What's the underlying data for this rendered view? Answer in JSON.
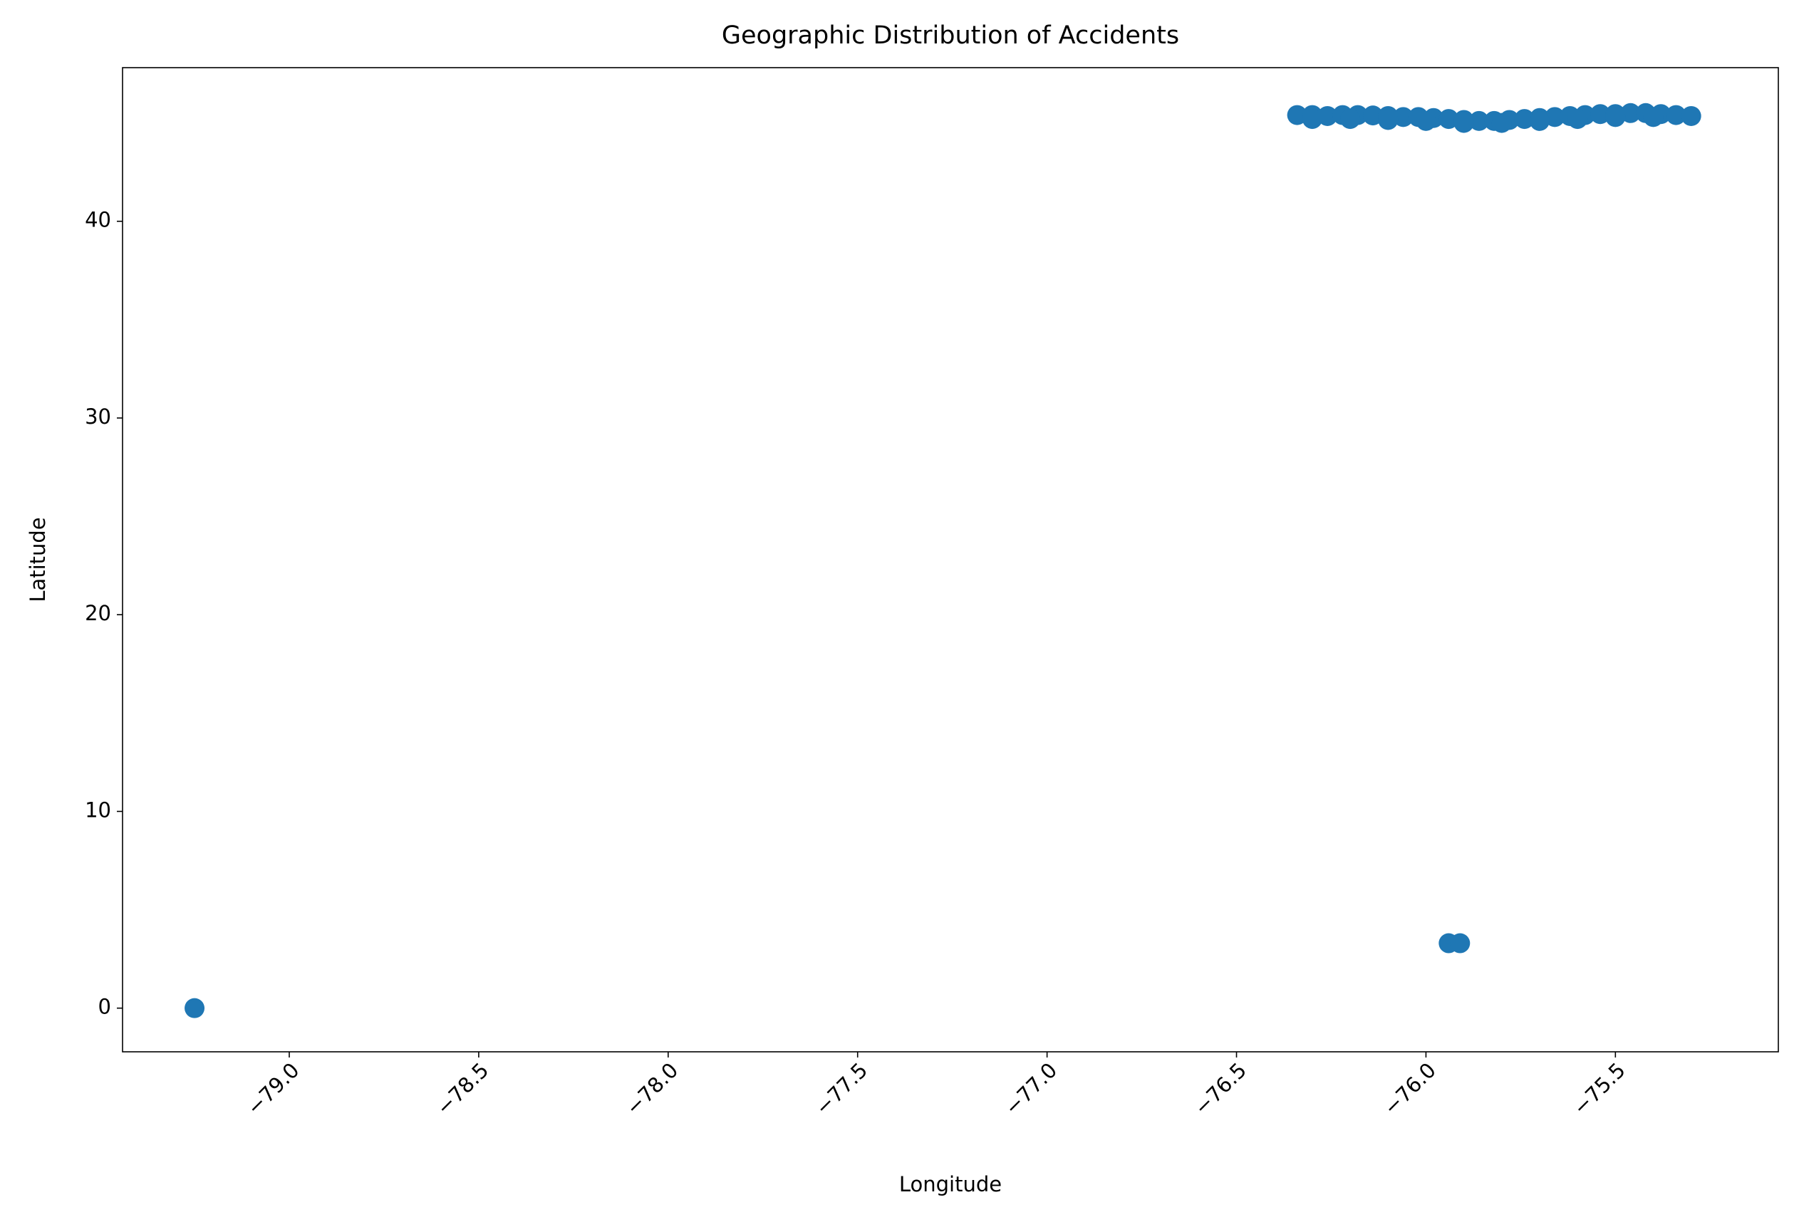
{
  "chart_data": {
    "type": "scatter",
    "title": "Geographic Distribution of Accidents",
    "x_label": "Longitude",
    "y_label": "Latitude",
    "color": "#1f77b4",
    "x": [
      -76.34,
      -76.3,
      -76.26,
      -76.22,
      -76.18,
      -76.14,
      -76.1,
      -76.06,
      -76.02,
      -75.98,
      -75.94,
      -75.9,
      -75.86,
      -75.82,
      -75.78,
      -75.74,
      -75.7,
      -75.66,
      -75.62,
      -75.58,
      -75.54,
      -75.5,
      -75.46,
      -75.42,
      -75.38,
      -75.34,
      -75.3,
      -76.3,
      -76.2,
      -76.1,
      -76.0,
      -75.9,
      -75.8,
      -75.7,
      -75.6,
      -75.5,
      -75.4,
      -79.25,
      -75.94,
      -75.91
    ],
    "y": [
      45.4,
      45.4,
      45.35,
      45.4,
      45.4,
      45.38,
      45.35,
      45.3,
      45.3,
      45.25,
      45.2,
      45.15,
      45.1,
      45.1,
      45.15,
      45.2,
      45.25,
      45.3,
      45.35,
      45.4,
      45.45,
      45.45,
      45.5,
      45.5,
      45.45,
      45.4,
      45.35,
      45.2,
      45.2,
      45.15,
      45.1,
      45.0,
      45.0,
      45.1,
      45.2,
      45.3,
      45.3,
      0,
      3.3,
      3.3
    ],
    "xlim": [
      -79.44,
      -75.07
    ],
    "ylim": [
      -2.22,
      47.81
    ],
    "xticks": [
      {
        "value": -79.0,
        "label": "−79.0"
      },
      {
        "value": -78.5,
        "label": "−78.5"
      },
      {
        "value": -78.0,
        "label": "−78.0"
      },
      {
        "value": -77.5,
        "label": "−77.5"
      },
      {
        "value": -77.0,
        "label": "−77.0"
      },
      {
        "value": -76.5,
        "label": "−76.5"
      },
      {
        "value": -76.0,
        "label": "−76.0"
      },
      {
        "value": -75.5,
        "label": "−75.5"
      }
    ],
    "yticks": [
      0,
      10,
      20,
      30,
      40
    ]
  }
}
